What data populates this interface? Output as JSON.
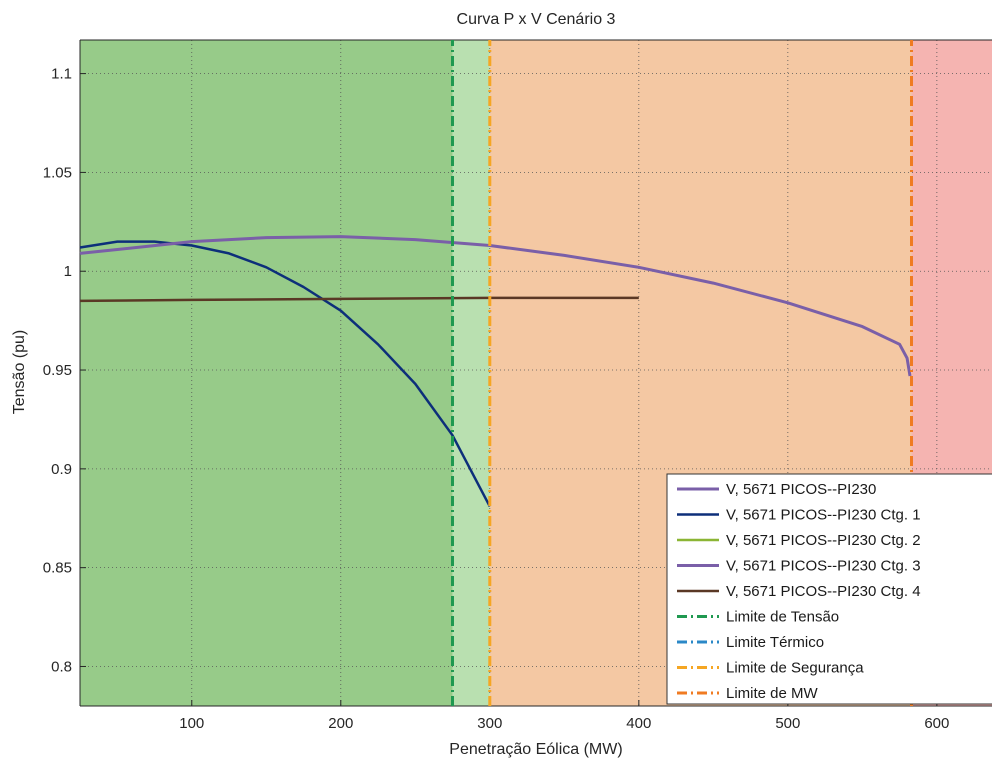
{
  "chart_data": {
    "type": "line",
    "title": "Curva P x V Cenário 3",
    "xlabel": "Penetração Eólica (MW)",
    "ylabel": "Tensão (pu)",
    "xlim": [
      25,
      637
    ],
    "ylim": [
      0.78,
      1.117
    ],
    "xticks": [
      100,
      200,
      300,
      400,
      500,
      600
    ],
    "yticks": [
      0.8,
      0.85,
      0.9,
      0.95,
      1,
      1.05,
      1.1
    ],
    "xtick_labels": [
      "100",
      "200",
      "300",
      "400",
      "500",
      "600"
    ],
    "ytick_labels": [
      "0.8",
      "0.85",
      "0.9",
      "0.95",
      "1",
      "1.05",
      "1.1"
    ],
    "grid": true,
    "legend_position": "bottom-right",
    "regions": [
      {
        "x_start": 25,
        "x_end": 275,
        "color": "#97cb89"
      },
      {
        "x_start": 275,
        "x_end": 300,
        "color": "#b9e0b0"
      },
      {
        "x_start": 300,
        "x_end": 583,
        "color": "#f4c8a3"
      },
      {
        "x_start": 583,
        "x_end": 637,
        "color": "#f5b4b1"
      }
    ],
    "series": [
      {
        "name": "V, 5671 PICOS--PI230",
        "color": "#7a5fa8",
        "width": 3,
        "x": [],
        "y": []
      },
      {
        "name": "V, 5671 PICOS--PI230 Ctg. 1",
        "color": "#0d2f7a",
        "width": 2.5,
        "x": [
          25,
          50,
          75,
          100,
          125,
          150,
          175,
          200,
          225,
          250,
          275,
          300
        ],
        "y": [
          1.012,
          1.015,
          1.015,
          1.013,
          1.009,
          1.002,
          0.992,
          0.98,
          0.963,
          0.943,
          0.917,
          0.881
        ]
      },
      {
        "name": "V, 5671 PICOS--PI230 Ctg. 2",
        "color": "#8bb534",
        "width": 2.5,
        "x": [],
        "y": []
      },
      {
        "name": "V, 5671 PICOS--PI230 Ctg. 3",
        "color": "#7a5fa8",
        "width": 3,
        "x": [
          25,
          50,
          100,
          150,
          200,
          250,
          300,
          350,
          400,
          450,
          500,
          550,
          575,
          580,
          582
        ],
        "y": [
          1.009,
          1.011,
          1.015,
          1.017,
          1.0175,
          1.016,
          1.013,
          1.008,
          1.002,
          0.994,
          0.984,
          0.972,
          0.963,
          0.956,
          0.947
        ]
      },
      {
        "name": "V, 5671 PICOS--PI230 Ctg. 4",
        "color": "#5a3825",
        "width": 2.5,
        "x": [
          25,
          100,
          200,
          300,
          400
        ],
        "y": [
          0.985,
          0.9855,
          0.986,
          0.9865,
          0.9865
        ]
      },
      {
        "name": "Limite de Tensão",
        "color": "#1f9950",
        "width": 3,
        "dash": "10,4,2,4",
        "x": [
          275,
          275
        ],
        "y": [
          0.78,
          1.117
        ]
      },
      {
        "name": "Limite Térmico",
        "color": "#2b88c7",
        "width": 3,
        "dash": "10,4,2,4",
        "x": [],
        "y": []
      },
      {
        "name": "Limite de Segurança",
        "color": "#f5a623",
        "width": 3,
        "dash": "10,4,2,4",
        "x": [
          300,
          300
        ],
        "y": [
          0.78,
          1.117
        ]
      },
      {
        "name": "Limite de MW",
        "color": "#f07b22",
        "width": 3,
        "dash": "10,4,2,4",
        "x": [
          583,
          583
        ],
        "y": [
          0.78,
          1.117
        ]
      }
    ]
  }
}
